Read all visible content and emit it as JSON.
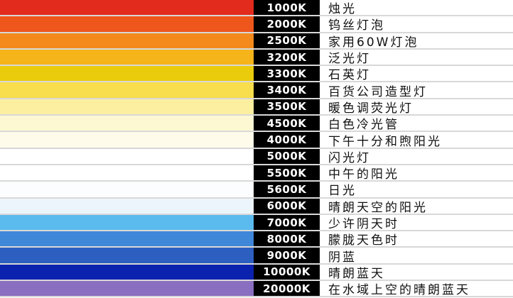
{
  "rows": [
    {
      "kelvin": "1000K",
      "label": "烛光",
      "color": "#e22b1c"
    },
    {
      "kelvin": "2000K",
      "label": "钨丝灯泡",
      "color": "#ef561b"
    },
    {
      "kelvin": "2500K",
      "label": "家用60W灯泡",
      "color": "#f48a1c"
    },
    {
      "kelvin": "3200K",
      "label": "泛光灯",
      "color": "#f6b41b"
    },
    {
      "kelvin": "3300K",
      "label": "石英灯",
      "color": "#ebcc0c"
    },
    {
      "kelvin": "3400K",
      "label": "百货公司造型灯",
      "color": "#f8dd4c"
    },
    {
      "kelvin": "3500K",
      "label": "暖色调荧光灯",
      "color": "#fcefa0"
    },
    {
      "kelvin": "4500K",
      "label": "白色冷光管",
      "color": "#fdf8d2"
    },
    {
      "kelvin": "4000K",
      "label": "下午十分和煦阳光",
      "color": "#fffbea"
    },
    {
      "kelvin": "5000K",
      "label": "闪光灯",
      "color": "#ffffff"
    },
    {
      "kelvin": "5500K",
      "label": "中午的阳光",
      "color": "#ffffff"
    },
    {
      "kelvin": "5600K",
      "label": "日光",
      "color": "#fbfdff"
    },
    {
      "kelvin": "6000K",
      "label": "晴朗天空的阳光",
      "color": "#edf5fc"
    },
    {
      "kelvin": "7000K",
      "label": "少许阴天时",
      "color": "#5bbaee"
    },
    {
      "kelvin": "8000K",
      "label": "朦胧天色时",
      "color": "#3f87d8"
    },
    {
      "kelvin": "9000K",
      "label": "阴蓝",
      "color": "#2c5fc0"
    },
    {
      "kelvin": "10000K",
      "label": "晴朗蓝天",
      "color": "#0b22ae"
    },
    {
      "kelvin": "20000K",
      "label": "在水域上空的晴朗蓝天",
      "color": "#8a6ec0"
    }
  ]
}
